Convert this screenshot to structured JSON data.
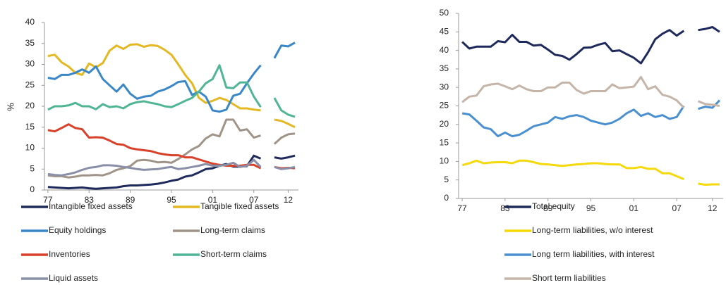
{
  "chart_data": [
    {
      "type": "line",
      "ylabel": "%",
      "x": [
        1977,
        1978,
        1979,
        1980,
        1981,
        1982,
        1983,
        1984,
        1985,
        1986,
        1987,
        1988,
        1989,
        1990,
        1991,
        1992,
        1993,
        1994,
        1995,
        1996,
        1997,
        1998,
        1999,
        2000,
        2001,
        2002,
        2003,
        2004,
        2005,
        2006,
        2007,
        2008,
        2009,
        2010,
        2011,
        2012,
        2013
      ],
      "xlim": [
        1976.5,
        2013.5
      ],
      "xticks": [
        {
          "value": 1977,
          "label": "77"
        },
        {
          "value": 1983,
          "label": "83"
        },
        {
          "value": 1989,
          "label": "89"
        },
        {
          "value": 1995,
          "label": "95"
        },
        {
          "value": 2001,
          "label": "01"
        },
        {
          "value": 2007,
          "label": "07"
        },
        {
          "value": 2012,
          "label": "12"
        }
      ],
      "ylim": [
        0,
        40
      ],
      "yticks": [
        0,
        5,
        10,
        15,
        20,
        25,
        30,
        35,
        40
      ],
      "series": [
        {
          "name": "Intangible fixed assets",
          "color": "#1f2a5c",
          "values": [
            0.7,
            0.6,
            0.5,
            0.4,
            0.5,
            0.6,
            0.4,
            0.3,
            0.4,
            0.5,
            0.6,
            0.9,
            1.1,
            1.1,
            1.2,
            1.3,
            1.5,
            1.8,
            2.2,
            2.5,
            3.2,
            3.5,
            4.2,
            5.0,
            5.2,
            5.8,
            6.2,
            5.6,
            5.6,
            5.7,
            8.2,
            7.5,
            null,
            7.8,
            7.5,
            7.8,
            8.2
          ]
        },
        {
          "name": "Tangible fixed assets",
          "color": "#e3b822",
          "values": [
            32,
            32.3,
            30.5,
            29.5,
            28,
            27.5,
            30.2,
            29.3,
            30.3,
            33.3,
            34.5,
            33.7,
            34.7,
            34.8,
            34.2,
            34.6,
            34.4,
            33.5,
            32.3,
            30,
            27.5,
            25.5,
            22,
            20.8,
            21.3,
            22,
            21.5,
            20.5,
            19.5,
            19.5,
            19.2,
            19,
            null,
            16.8,
            16.5,
            15.8,
            15.0
          ]
        },
        {
          "name": "Equity holdings",
          "color": "#3a87c8",
          "values": [
            26.8,
            26.5,
            27.5,
            27.5,
            28,
            28.8,
            28,
            29.5,
            26.5,
            25,
            23.5,
            25.2,
            23,
            21.8,
            22.3,
            22.5,
            23.5,
            24,
            24.8,
            25.8,
            26,
            22.7,
            23.5,
            22.3,
            19,
            18.7,
            19.2,
            22.5,
            23,
            25.5,
            27.8,
            29.8,
            null,
            31.5,
            34.5,
            34.3,
            35.2
          ]
        },
        {
          "name": "Long-term claims",
          "color": "#a09488",
          "values": [
            3.5,
            3.3,
            3.3,
            3.0,
            3.2,
            3.5,
            3.5,
            3.6,
            3.5,
            4.0,
            4.8,
            5.2,
            5.7,
            7.0,
            7.2,
            7.0,
            6.6,
            6.7,
            6.5,
            7.4,
            8.5,
            9.7,
            10.5,
            12.3,
            13.3,
            12.8,
            16.8,
            16.8,
            14.2,
            14.5,
            12.5,
            13.0,
            null,
            11,
            12.5,
            13.3,
            13.5
          ]
        },
        {
          "name": "Inventories",
          "color": "#d9412b",
          "values": [
            14.3,
            14.0,
            14.8,
            15.7,
            14.8,
            14.5,
            12.5,
            12.6,
            12.5,
            11.8,
            11.0,
            10.8,
            10.0,
            9.7,
            9.5,
            9.3,
            8.8,
            8.5,
            8.3,
            8.3,
            7.8,
            7.8,
            7.3,
            6.8,
            6.3,
            6.0,
            5.8,
            5.8,
            5.8,
            6.0,
            6.0,
            5.2,
            null,
            5.5,
            5.2,
            5.3,
            5.2
          ]
        },
        {
          "name": "Short-term claims",
          "color": "#4fb595",
          "values": [
            19.2,
            20,
            20,
            20.2,
            20.8,
            20,
            20,
            19.3,
            20.5,
            19.8,
            20,
            19.5,
            20.5,
            21,
            21.2,
            20.8,
            20.5,
            20,
            19.8,
            20.5,
            21.3,
            22,
            23.5,
            25.5,
            26.5,
            29.8,
            24.5,
            24.3,
            25.7,
            25.7,
            22.3,
            19.8,
            null,
            22,
            19,
            18,
            17.5
          ]
        },
        {
          "name": "Liquid assets",
          "color": "#8a8fa8",
          "values": [
            3.8,
            3.6,
            3.5,
            3.8,
            4.2,
            4.8,
            5.3,
            5.5,
            5.9,
            5.9,
            5.8,
            5.5,
            5.3,
            5.0,
            4.8,
            4.9,
            5.0,
            5.3,
            5.5,
            5.0,
            5.2,
            5.5,
            5.8,
            6.2,
            5.8,
            5.8,
            6.0,
            6.5,
            5.5,
            5.8,
            7.2,
            5.5,
            null,
            5.5,
            5.0,
            5.2,
            5.5
          ]
        }
      ]
    },
    {
      "type": "line",
      "x": [
        1977,
        1978,
        1979,
        1980,
        1981,
        1982,
        1983,
        1984,
        1985,
        1986,
        1987,
        1988,
        1989,
        1990,
        1991,
        1992,
        1993,
        1994,
        1995,
        1996,
        1997,
        1998,
        1999,
        2000,
        2001,
        2002,
        2003,
        2004,
        2005,
        2006,
        2007,
        2008,
        2009,
        2010,
        2011,
        2012,
        2013
      ],
      "xlim": [
        1976.5,
        2013.5
      ],
      "xticks": [
        {
          "value": 1977,
          "label": "77"
        },
        {
          "value": 1983,
          "label": "83"
        },
        {
          "value": 1989,
          "label": "89"
        },
        {
          "value": 1995,
          "label": "95"
        },
        {
          "value": 2001,
          "label": "01"
        },
        {
          "value": 2007,
          "label": "07"
        },
        {
          "value": 2012,
          "label": "12"
        }
      ],
      "ylim": [
        0,
        50
      ],
      "yticks": [
        0,
        5,
        10,
        15,
        20,
        25,
        30,
        35,
        40,
        45,
        50
      ],
      "series": [
        {
          "name": "Total equity",
          "color": "#1f2a5c",
          "values": [
            42.3,
            40.5,
            41,
            41,
            41,
            42.5,
            42.2,
            44.2,
            42.3,
            42.3,
            41.3,
            41.5,
            40.2,
            38.8,
            38.5,
            37.5,
            39,
            40.7,
            40.8,
            41.5,
            42,
            39.8,
            40,
            39,
            38,
            36.5,
            39.5,
            43,
            44.5,
            45.5,
            44,
            45.3,
            null,
            45.5,
            45.8,
            46.3,
            45
          ]
        },
        {
          "name": "Long-term liabilities, w/o interest",
          "color": "#f5d90a",
          "values": [
            9,
            9.5,
            10.2,
            9.5,
            9.7,
            9.8,
            9.8,
            9.5,
            10.2,
            10.2,
            9.8,
            9.3,
            9.2,
            9,
            8.8,
            9,
            9.2,
            9.3,
            9.5,
            9.5,
            9.3,
            9.2,
            9.2,
            8.2,
            8.2,
            8.5,
            8,
            8,
            6.8,
            6.8,
            6,
            5.2,
            null,
            4,
            3.7,
            3.8,
            3.8
          ]
        },
        {
          "name": "Long term liabilities, with interest",
          "color": "#4a90d0",
          "values": [
            23,
            22.7,
            21,
            19.2,
            18.7,
            16.8,
            17.8,
            16.8,
            17.2,
            18.3,
            19.5,
            20,
            20.5,
            22,
            21.5,
            22.2,
            22.5,
            22,
            21,
            20.5,
            20,
            20.5,
            21.5,
            23,
            24,
            22.3,
            23,
            22,
            22.5,
            21.5,
            22,
            25,
            null,
            24.2,
            24.8,
            24.5,
            26.5
          ]
        },
        {
          "name": "Short term liabilities",
          "color": "#c4b5a8",
          "values": [
            26,
            27.5,
            27.8,
            30.3,
            30.8,
            31,
            30.3,
            29.5,
            30.5,
            29.5,
            29,
            29,
            30,
            30,
            31.3,
            31.3,
            29.3,
            28.3,
            29,
            29,
            29,
            30.8,
            29.8,
            30,
            30.2,
            32.8,
            29.5,
            30.3,
            28,
            27.5,
            26.5,
            24.5,
            null,
            26.3,
            25.5,
            25.3,
            25
          ]
        }
      ]
    }
  ]
}
